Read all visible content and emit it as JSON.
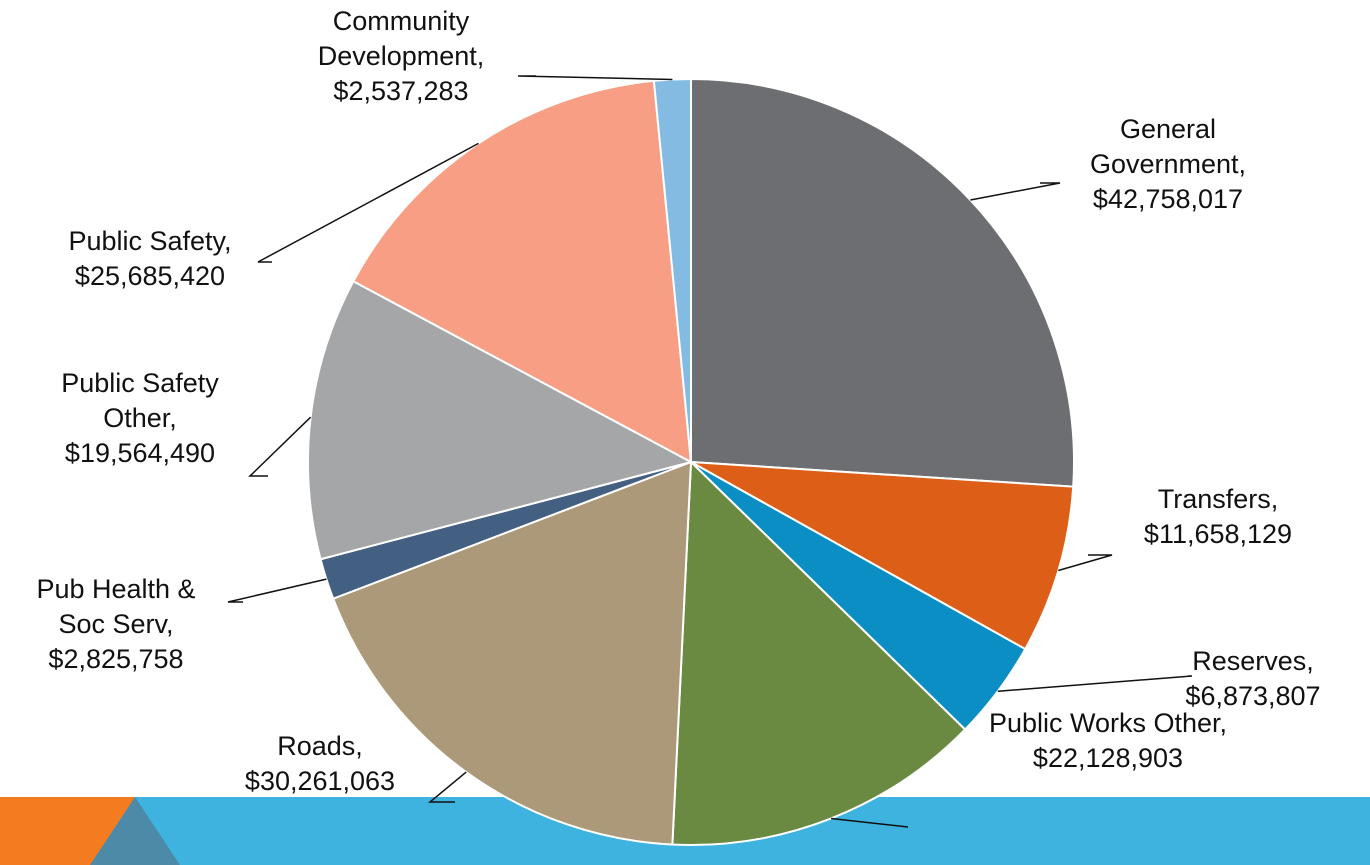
{
  "chart_data": {
    "type": "pie",
    "title": "",
    "start_angle_deg": 0,
    "direction": "clockwise",
    "slices": [
      {
        "name_lines": [
          "General",
          "Government,"
        ],
        "value_label": "$42,758,017",
        "value": 42758017,
        "color": "#6D6E71"
      },
      {
        "name_lines": [
          "Transfers,"
        ],
        "value_label": "$11,658,129",
        "value": 11658129,
        "color": "#DD5E17"
      },
      {
        "name_lines": [
          "Reserves,"
        ],
        "value_label": "$6,873,807",
        "value": 6873807,
        "color": "#0A8EC3"
      },
      {
        "name_lines": [
          "Public Works Other,"
        ],
        "value_label": "$22,128,903",
        "value": 22128903,
        "color": "#6A8A41"
      },
      {
        "name_lines": [
          "Roads,"
        ],
        "value_label": "$30,261,063",
        "value": 30261063,
        "color": "#AB997A"
      },
      {
        "name_lines": [
          "Pub Health &",
          "Soc Serv,"
        ],
        "value_label": "$2,825,758",
        "value": 2825758,
        "color": "#435F82"
      },
      {
        "name_lines": [
          "Public Safety",
          "Other,"
        ],
        "value_label": "$19,564,490",
        "value": 19564490,
        "color": "#A5A6A8"
      },
      {
        "name_lines": [
          "Public Safety,"
        ],
        "value_label": "$25,685,420",
        "value": 25685420,
        "color": "#F79E85"
      },
      {
        "name_lines": [
          "Community",
          "Development,"
        ],
        "value_label": "$2,537,283",
        "value": 2537283,
        "color": "#83BBE2"
      }
    ]
  },
  "footer": {
    "bar_color": "#3EB3E0",
    "accent_color": "#F47B20",
    "accent2_color": "#4C8AA8"
  }
}
